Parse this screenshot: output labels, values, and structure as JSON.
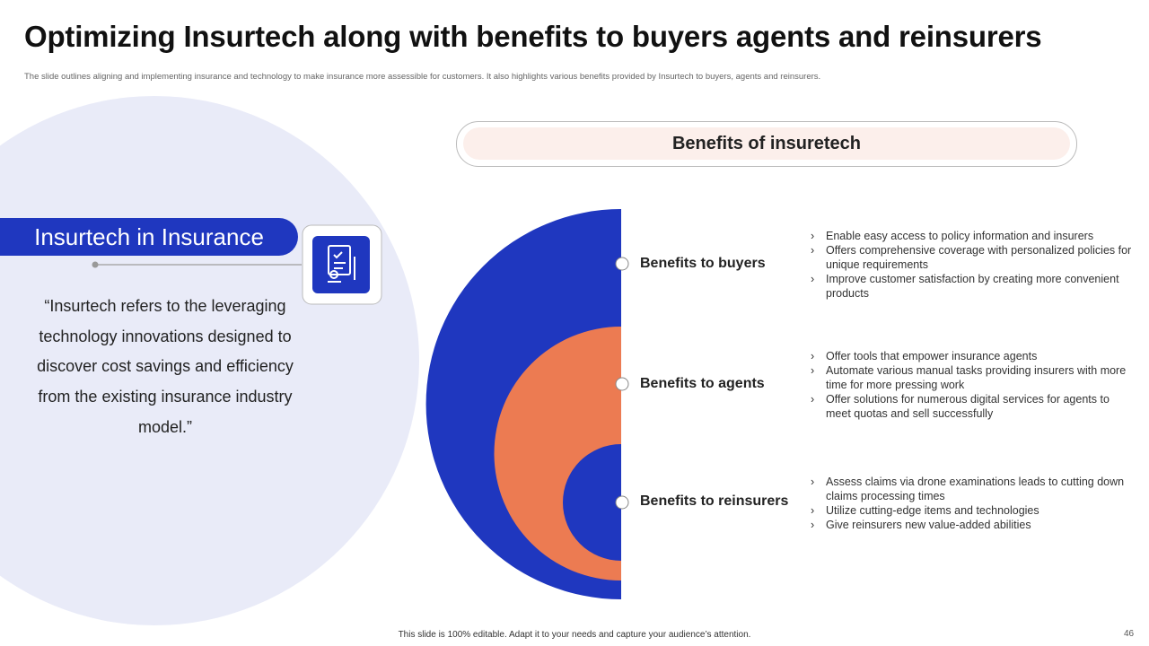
{
  "header": {
    "title": "Optimizing Insurtech along with benefits to buyers agents and reinsurers",
    "subtitle": "The slide outlines aligning and implementing  insurance and technology to make insurance more assessible for customers. It also highlights various benefits provided by Insurtech to buyers, agents and reinsurers."
  },
  "left_panel": {
    "heading": "Insurtech in Insurance",
    "quote": "“Insurtech refers to the leveraging technology innovations designed to discover cost savings and efficiency from the existing insurance industry model.”"
  },
  "benefits": {
    "header": "Benefits of insuretech",
    "sections": [
      {
        "label": "Benefits to buyers",
        "bullets": [
          "Enable easy access to policy information and insurers",
          "Offers comprehensive coverage  with personalized policies for unique requirements",
          "Improve  customer satisfaction by creating more convenient  products"
        ]
      },
      {
        "label": "Benefits to agents",
        "bullets": [
          "Offer tools that empower  insurance agents",
          "Automate various  manual tasks providing insurers with more time for more pressing work",
          "Offer solutions for numerous digital services for agents to meet quotas and sell successfully"
        ]
      },
      {
        "label": "Benefits to reinsurers",
        "bullets": [
          "Assess claims via drone examinations leads to cutting down claims processing times",
          "Utilize cutting-edge items and technologies",
          "Give reinsurers new value-added  abilities"
        ]
      }
    ]
  },
  "footer": {
    "note": "This slide is 100% editable.  Adapt it to your needs and capture your audience’s attention.",
    "page_number": "46"
  }
}
